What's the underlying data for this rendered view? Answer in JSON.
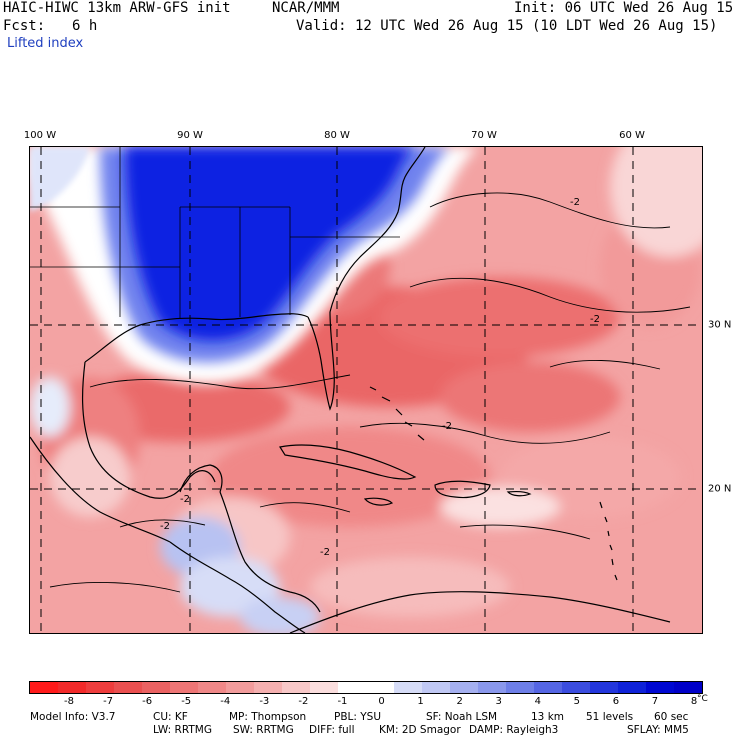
{
  "header": {
    "model_title": "HAIC-HIWC 13km ARW-GFS init",
    "org": "NCAR/MMM",
    "init_time": "Init: 06 UTC Wed 26 Aug 15",
    "fcst_label": "Fcst:",
    "fcst_value": "6 h",
    "valid_time": "Valid: 12 UTC Wed 26 Aug 15 (10 LDT Wed 26 Aug 15)",
    "field_name": "Lifted index"
  },
  "map": {
    "lon_labels": [
      "100 W",
      "90 W",
      "80 W",
      "70 W",
      "60 W"
    ],
    "lat_labels": [
      "30 N",
      "20 N"
    ],
    "contour_labels": [
      "-2",
      "-2",
      "-2",
      "-2",
      "-2",
      "-2"
    ],
    "colors": {
      "strong_positive": "#0a1fe0",
      "positive": "#7a8cf0",
      "neutral": "#ffffff",
      "mild_negative": "#f4a6a6",
      "negative": "#ec7373",
      "strong_negative": "#e24545"
    }
  },
  "colorbar": {
    "tick_labels": [
      "-8",
      "-7",
      "-6",
      "-5",
      "-4",
      "-3",
      "-2",
      "-1",
      "0",
      "1",
      "2",
      "3",
      "4",
      "5",
      "6",
      "7",
      "8"
    ],
    "unit": "°C",
    "colors": [
      "#ff1a1a",
      "#f22a2a",
      "#ee3d3d",
      "#ea5050",
      "#ea6262",
      "#ee7676",
      "#f08888",
      "#f29c9c",
      "#f5b0b0",
      "#f8c8c8",
      "#fbdede",
      "#ffffff",
      "#ffffff",
      "#d6dcf7",
      "#c0c8f4",
      "#a5b0f0",
      "#8a98ec",
      "#6e7fe8",
      "#5566e4",
      "#3b4ddf",
      "#2336dc",
      "#0f22d8",
      "#0008d2",
      "#0000c8"
    ]
  },
  "model_info": {
    "line1": [
      "Model Info: V3.7",
      "CU: KF",
      "MP: Thompson",
      "PBL: YSU",
      "SF: Noah LSM",
      "13 km",
      "51 levels",
      "60 sec"
    ],
    "line2": [
      "LW: RRTMG",
      "SW: RRTMG",
      "DIFF: full",
      "KM: 2D Smagor",
      "DAMP: Rayleigh3",
      "SFLAY: MM5"
    ]
  }
}
